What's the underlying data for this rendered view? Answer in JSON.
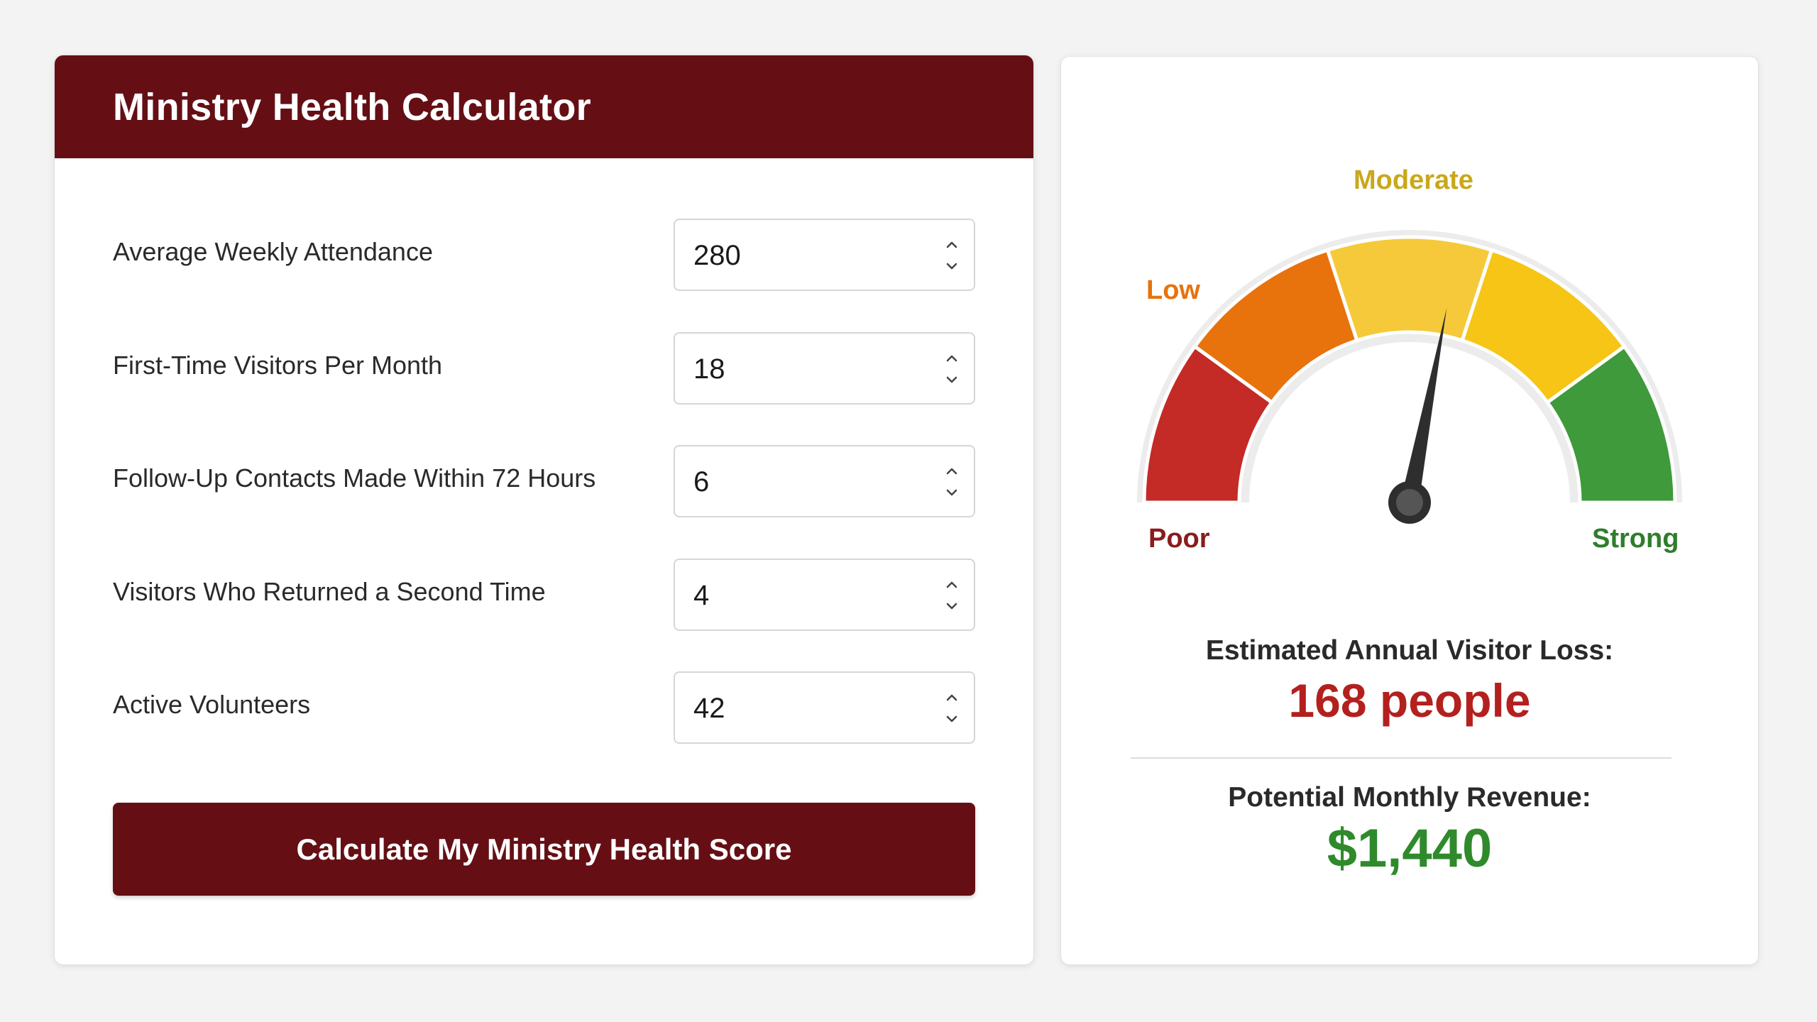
{
  "calculator": {
    "title": "Ministry Health Calculator",
    "fields": [
      {
        "label": "Average Weekly Attendance",
        "value": "280"
      },
      {
        "label": "First-Time Visitors Per Month",
        "value": "18"
      },
      {
        "label": "Follow-Up Contacts Made Within 72 Hours",
        "value": "6"
      },
      {
        "label": "Visitors Who Returned a Second Time",
        "value": "4"
      },
      {
        "label": "Active Volunteers",
        "value": "42"
      }
    ],
    "button_label": "Calculate My Ministry Health Score"
  },
  "gauge": {
    "labels": {
      "poor": "Poor",
      "low": "Low",
      "moderate": "Moderate",
      "strong": "Strong"
    },
    "level_fraction": 0.56,
    "colors": {
      "poor": "#c42a26",
      "low": "#e8720c",
      "moderate": "#f5c93a",
      "moderate_high": "#f6c515",
      "strong": "#3e9a3a",
      "needle": "#2e2e2e"
    }
  },
  "results": {
    "loss_label": "Estimated Annual Visitor Loss:",
    "loss_value": "168 people",
    "revenue_label": "Potential Monthly Revenue:",
    "revenue_value": "$1,440"
  },
  "colors": {
    "brand": "#650f15",
    "loss": "#b3201e",
    "revenue": "#2f8a2c"
  }
}
